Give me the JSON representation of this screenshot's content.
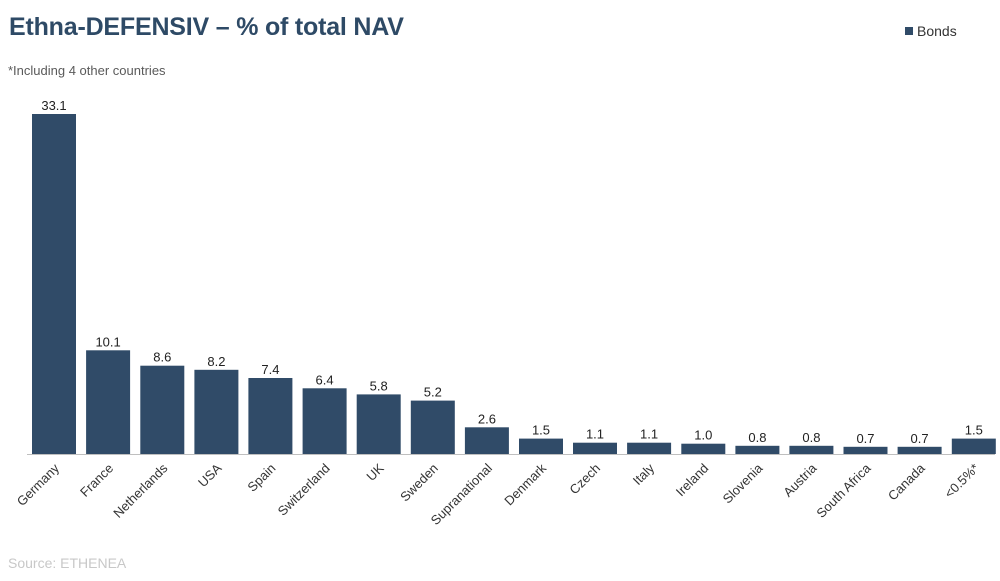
{
  "header": {
    "title": "Ethna-DEFENSIV – % of total NAV",
    "footnote": "*Including 4 other countries"
  },
  "legend": {
    "label": "Bonds"
  },
  "source": "Source: ETHENEA",
  "colors": {
    "bar": "#304b68",
    "axis": "#bfbfbf"
  },
  "chart_data": {
    "type": "bar",
    "title": "Ethna-DEFENSIV – % of total NAV",
    "xlabel": "",
    "ylabel": "",
    "ylim": [
      0,
      33.1
    ],
    "grid": false,
    "legend_position": "top-right",
    "series": [
      {
        "name": "Bonds",
        "values": [
          33.1,
          10.1,
          8.6,
          8.2,
          7.4,
          6.4,
          5.8,
          5.2,
          2.6,
          1.5,
          1.1,
          1.1,
          1.0,
          0.8,
          0.8,
          0.7,
          0.7,
          1.5
        ]
      }
    ],
    "categories": [
      "Germany",
      "France",
      "Netherlands",
      "USA",
      "Spain",
      "Switzerland",
      "UK",
      "Sweden",
      "Supranational",
      "Denmark",
      "Czech",
      "Italy",
      "Ireland",
      "Slovenia",
      "Austria",
      "South Africa",
      "Canada",
      "<0.5%*"
    ],
    "value_labels": [
      "33.1",
      "10.1",
      "8.6",
      "8.2",
      "7.4",
      "6.4",
      "5.8",
      "5.2",
      "2.6",
      "1.5",
      "1.1",
      "1.1",
      "1.0",
      "0.8",
      "0.8",
      "0.7",
      "0.7",
      "1.5"
    ]
  }
}
